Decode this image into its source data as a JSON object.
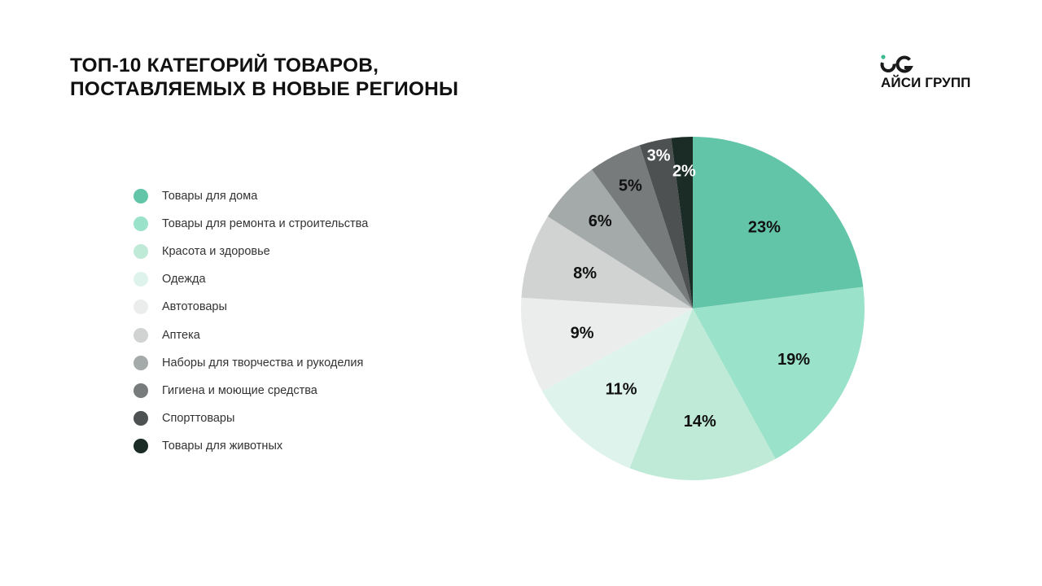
{
  "title": {
    "line1": "ТОП-10 КАТЕГОРИЙ ТОВАРОВ,",
    "line2": "ПОСТАВЛЯЕМЫХ В НОВЫЕ РЕГИОНЫ"
  },
  "logo": {
    "text": "АЙСИ ГРУПП",
    "mark_color": "#1a1a1a",
    "accent_color": "#3dbb8f"
  },
  "chart_data": {
    "type": "pie",
    "categories": [
      "Товары для дома",
      "Товары для ремонта и строительства",
      "Красота и здоровье",
      "Одежда",
      "Автотовары",
      "Аптека",
      "Наборы для творчества и рукоделия",
      "Гигиена и моющие средства",
      "Спорттовары",
      "Товары для животных"
    ],
    "values": [
      23,
      19,
      14,
      11,
      9,
      8,
      6,
      5,
      3,
      2
    ],
    "labels": [
      "23%",
      "19%",
      "14%",
      "11%",
      "9%",
      "8%",
      "6%",
      "5%",
      "3%",
      "2%"
    ],
    "colors": [
      "#63c5a7",
      "#9be2ca",
      "#bfead8",
      "#def3ec",
      "#ebecec",
      "#d1d3d3",
      "#a4aaa9",
      "#777b7c",
      "#4d5152",
      "#1b2b25"
    ],
    "label_colors": [
      "#111111",
      "#111111",
      "#111111",
      "#111111",
      "#111111",
      "#111111",
      "#111111",
      "#111111",
      "#ffffff",
      "#ffffff"
    ],
    "legend_position": "left",
    "start": "12 o'clock",
    "direction": "clockwise"
  }
}
